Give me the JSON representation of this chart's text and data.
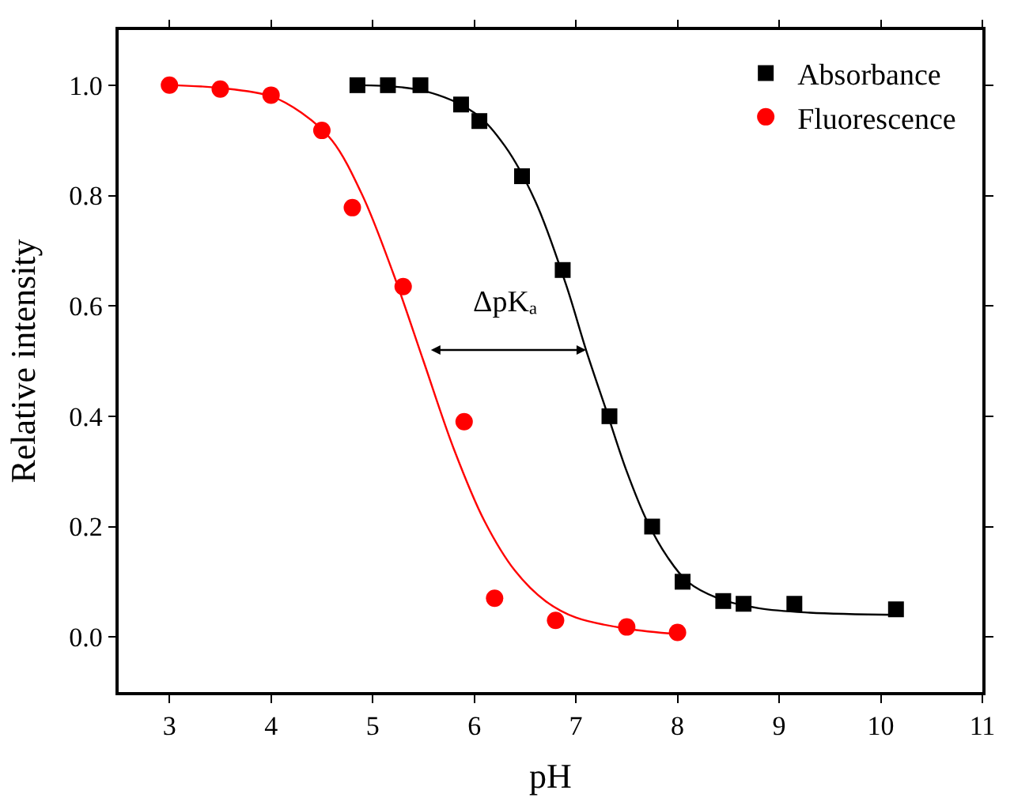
{
  "chart_data": {
    "type": "scatter",
    "xlabel": "pH",
    "ylabel": "Relative intensity",
    "xlim": [
      2.5,
      11
    ],
    "xticks": [
      3,
      4,
      5,
      6,
      7,
      8,
      9,
      10,
      11
    ],
    "ylim": [
      -0.1,
      1.1
    ],
    "yticks": [
      {
        "value": 0,
        "label": "0.0"
      },
      {
        "value": 0.2,
        "label": "0.2"
      },
      {
        "value": 0.4,
        "label": "0.4"
      },
      {
        "value": 0.6,
        "label": "0.6"
      },
      {
        "value": 0.8,
        "label": "0.8"
      },
      {
        "value": 1.0,
        "label": "1.0"
      }
    ],
    "legend": "top right",
    "series": [
      {
        "name": "Absorbance",
        "color": "#000000",
        "marker": "square",
        "x": [
          4.85,
          5.15,
          5.47,
          5.87,
          6.05,
          6.47,
          6.87,
          7.33,
          7.75,
          8.05,
          8.45,
          8.65,
          9.15,
          10.15
        ],
        "values": [
          1.0,
          1.0,
          1.0,
          0.965,
          0.935,
          0.835,
          0.665,
          0.4,
          0.2,
          0.1,
          0.065,
          0.06,
          0.06,
          0.05
        ]
      },
      {
        "name": "Fluorescence",
        "color": "#ff0000",
        "marker": "circle",
        "x": [
          3.0,
          3.5,
          4.0,
          4.5,
          4.8,
          5.3,
          5.9,
          6.2,
          6.8,
          7.5,
          8.0
        ],
        "values": [
          1.0,
          0.993,
          0.982,
          0.918,
          0.778,
          0.635,
          0.39,
          0.07,
          0.03,
          0.018,
          0.008
        ]
      },
      {
        "type": "line",
        "color": "#000000",
        "marker": "none",
        "line_style": "solid",
        "x": [
          4.85,
          5.5,
          6.0,
          6.3,
          6.6,
          6.9,
          7.1,
          7.3,
          7.5,
          7.7,
          7.9,
          8.1,
          8.4,
          8.8,
          9.3,
          10.15
        ],
        "values": [
          1.0,
          0.99,
          0.95,
          0.89,
          0.79,
          0.64,
          0.52,
          0.41,
          0.3,
          0.21,
          0.145,
          0.1,
          0.07,
          0.052,
          0.044,
          0.04
        ]
      },
      {
        "type": "line",
        "color": "#ff0000",
        "marker": "none",
        "line_style": "solid",
        "x": [
          3.0,
          3.5,
          4.0,
          4.3,
          4.6,
          4.9,
          5.2,
          5.5,
          5.8,
          6.1,
          6.4,
          6.7,
          7.0,
          7.5,
          8.0
        ],
        "values": [
          1.0,
          0.995,
          0.98,
          0.95,
          0.9,
          0.8,
          0.66,
          0.5,
          0.34,
          0.21,
          0.12,
          0.065,
          0.035,
          0.015,
          0.005
        ]
      }
    ],
    "annotations": [
      {
        "text": "ΔpKₐ",
        "x": 7.1,
        "y": 0.52
      }
    ]
  }
}
